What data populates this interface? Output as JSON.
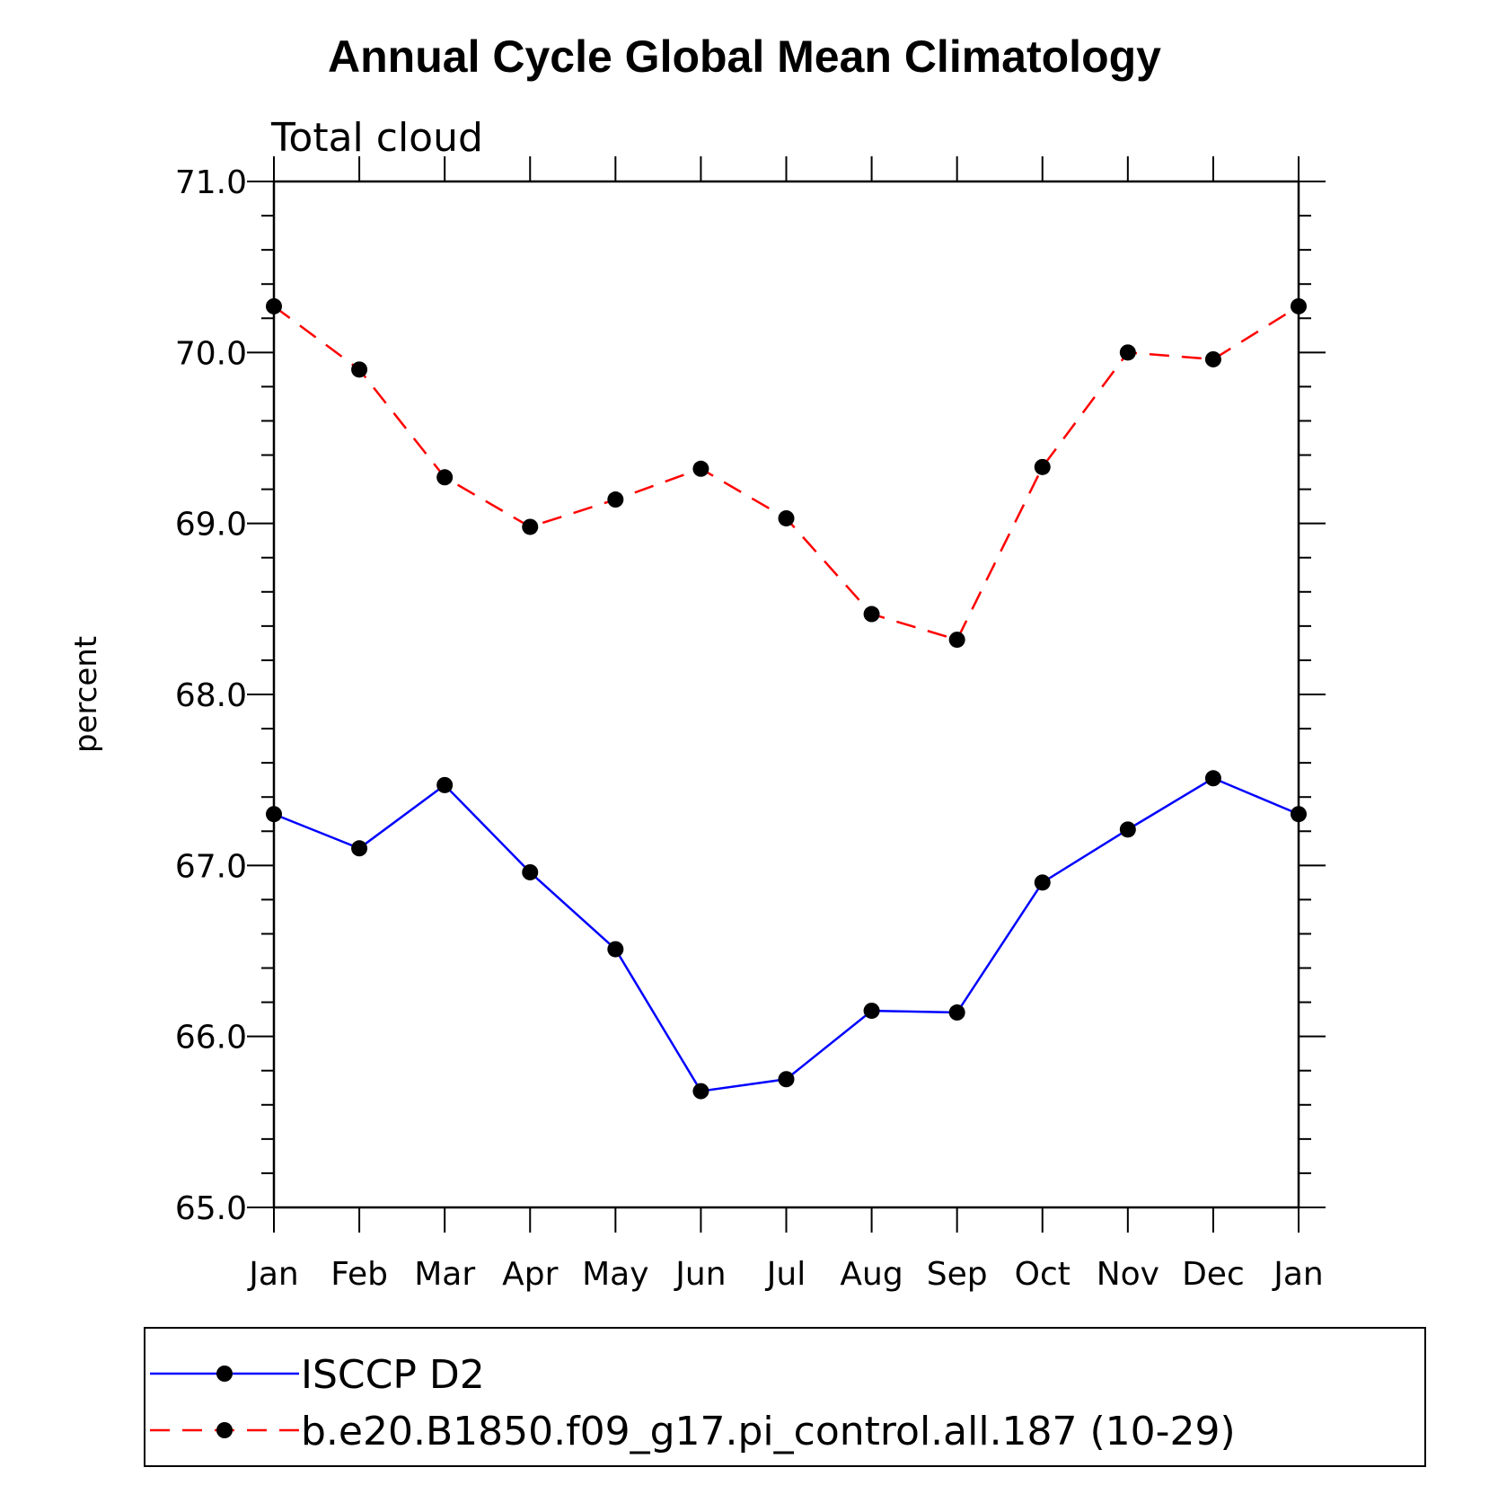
{
  "chart_data": {
    "type": "line",
    "title": "Annual Cycle Global Mean Climatology",
    "subtitle": "Total cloud",
    "xlabel": "",
    "ylabel": "percent",
    "categories": [
      "Jan",
      "Feb",
      "Mar",
      "Apr",
      "May",
      "Jun",
      "Jul",
      "Aug",
      "Sep",
      "Oct",
      "Nov",
      "Dec",
      "Jan"
    ],
    "ylim": [
      65.0,
      71.0
    ],
    "yticks": [
      "65.0",
      "66.0",
      "67.0",
      "68.0",
      "69.0",
      "70.0",
      "71.0"
    ],
    "grid": false,
    "legend_position": "bottom",
    "series": [
      {
        "name": "ISCCP D2",
        "color": "#0000ff",
        "line_style": "solid",
        "marker": "filled-circle",
        "values": [
          67.3,
          67.1,
          67.47,
          66.96,
          66.51,
          65.68,
          65.75,
          66.15,
          66.14,
          66.9,
          67.21,
          67.51,
          67.3
        ]
      },
      {
        "name": "b.e20.B1850.f09_g17.pi_control.all.187 (10-29)",
        "color": "#ff0000",
        "line_style": "dashed",
        "marker": "filled-circle",
        "values": [
          70.27,
          69.9,
          69.27,
          68.98,
          69.14,
          69.32,
          69.03,
          68.47,
          68.32,
          69.33,
          70.0,
          69.96,
          70.27
        ]
      }
    ]
  }
}
